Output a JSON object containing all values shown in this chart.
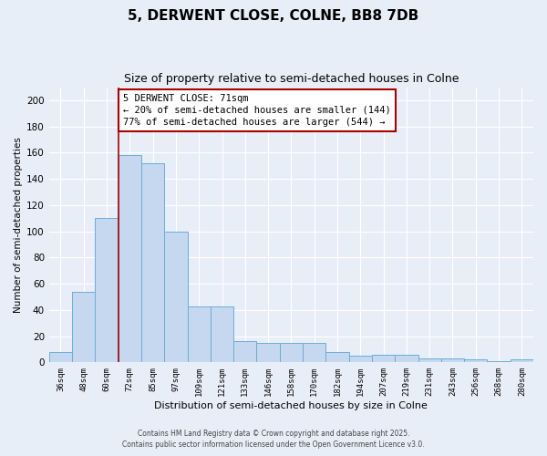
{
  "title": "5, DERWENT CLOSE, COLNE, BB8 7DB",
  "subtitle": "Size of property relative to semi-detached houses in Colne",
  "xlabel": "Distribution of semi-detached houses by size in Colne",
  "ylabel": "Number of semi-detached properties",
  "categories": [
    "36sqm",
    "48sqm",
    "60sqm",
    "72sqm",
    "85sqm",
    "97sqm",
    "109sqm",
    "121sqm",
    "133sqm",
    "146sqm",
    "158sqm",
    "170sqm",
    "182sqm",
    "194sqm",
    "207sqm",
    "219sqm",
    "231sqm",
    "243sqm",
    "256sqm",
    "268sqm",
    "280sqm"
  ],
  "values": [
    8,
    54,
    110,
    158,
    152,
    100,
    43,
    43,
    16,
    15,
    15,
    15,
    8,
    5,
    6,
    6,
    3,
    3,
    2,
    1,
    2
  ],
  "bar_color": "#c5d8f0",
  "bar_edge_color": "#6aaed6",
  "vline_color": "#aa0000",
  "vline_x": 3.0,
  "annotation_text": "5 DERWENT CLOSE: 71sqm\n← 20% of semi-detached houses are smaller (144)\n77% of semi-detached houses are larger (544) →",
  "annotation_box_color": "#ffffff",
  "annotation_box_edge": "#aa0000",
  "ylim": [
    0,
    210
  ],
  "yticks": [
    0,
    20,
    40,
    60,
    80,
    100,
    120,
    140,
    160,
    180,
    200
  ],
  "footer_line1": "Contains HM Land Registry data © Crown copyright and database right 2025.",
  "footer_line2": "Contains public sector information licensed under the Open Government Licence v3.0.",
  "background_color": "#e8eef8",
  "plot_bg_color": "#e8eef8",
  "title_fontsize": 11,
  "subtitle_fontsize": 9
}
